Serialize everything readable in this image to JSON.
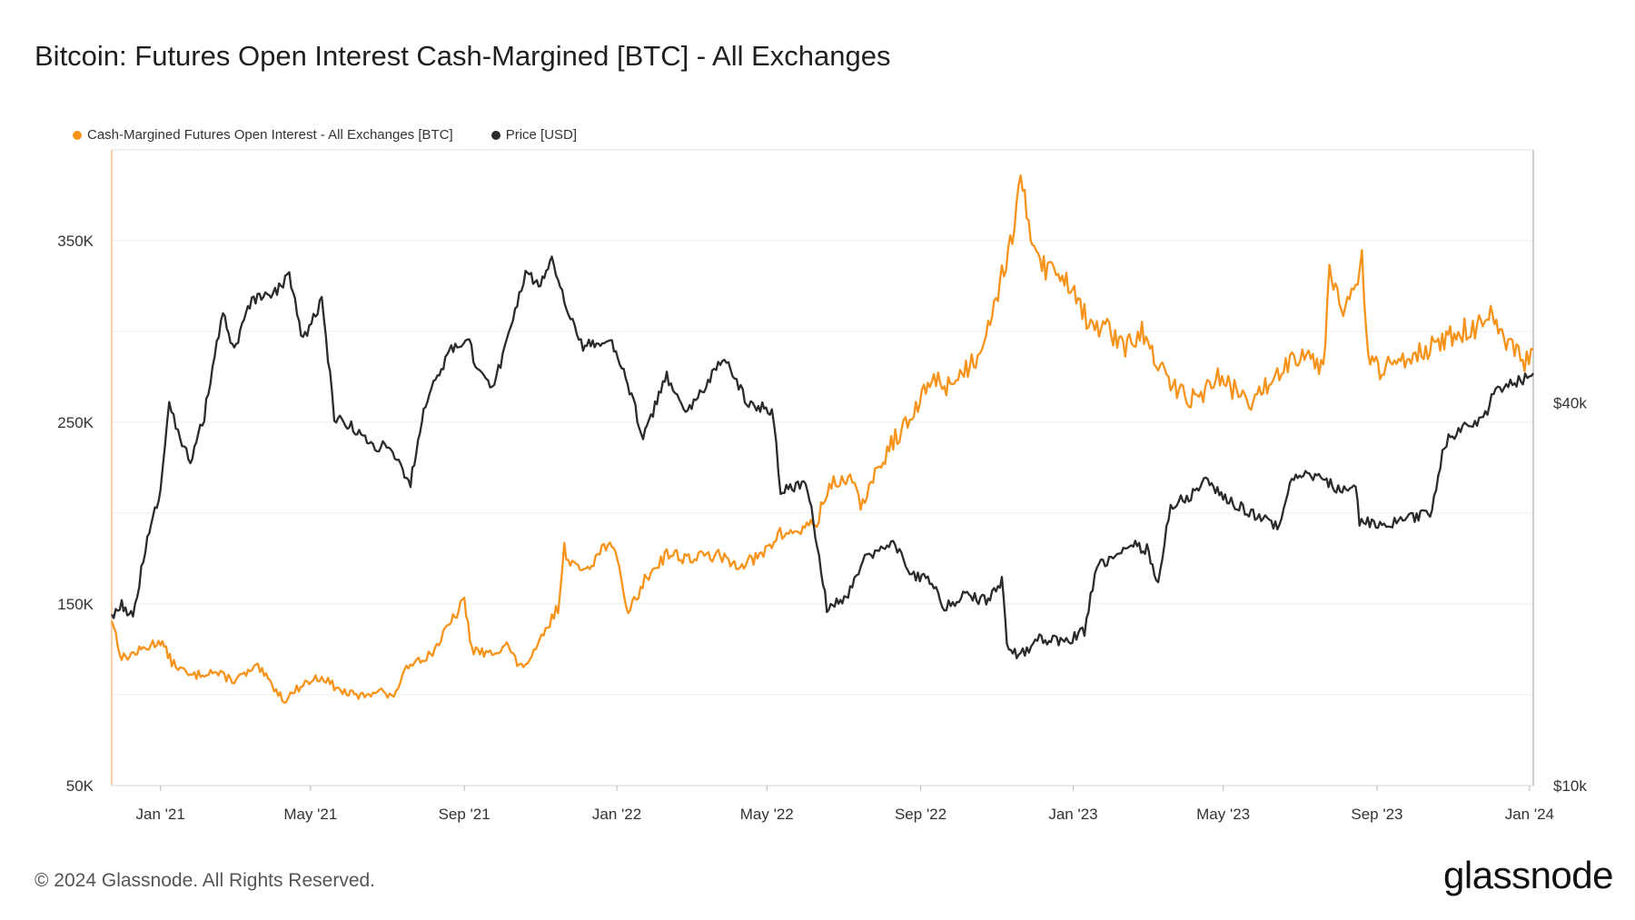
{
  "title": "Bitcoin: Futures Open Interest Cash-Margined [BTC] - All Exchanges",
  "legend": {
    "items": [
      {
        "label": "Cash-Margined Futures Open Interest - All Exchanges [BTC]",
        "color": "#F7931A"
      },
      {
        "label": "Price [USD]",
        "color": "#2b2b2b"
      }
    ]
  },
  "footer": {
    "copyright": "© 2024 Glassnode. All Rights Reserved.",
    "brand": "glassnode"
  },
  "chart_data": {
    "type": "line",
    "title": "Bitcoin: Futures Open Interest Cash-Margined [BTC] - All Exchanges",
    "x_ticks": [
      "Jan '21",
      "May '21",
      "Sep '21",
      "Jan '22",
      "May '22",
      "Sep '22",
      "Jan '23",
      "May '23",
      "Sep '23",
      "Jan '24"
    ],
    "x_tick_dates": [
      "2021-01-01",
      "2021-05-01",
      "2021-09-01",
      "2022-01-01",
      "2022-05-01",
      "2022-09-01",
      "2023-01-01",
      "2023-05-01",
      "2023-09-01",
      "2024-01-01"
    ],
    "x_range": [
      "2020-11-23",
      "2024-01-04"
    ],
    "y_left": {
      "ticks": [
        "350K",
        "250K",
        "150K",
        "50K"
      ],
      "tick_values": [
        350000,
        250000,
        150000,
        50000
      ],
      "range": [
        50000,
        400000
      ]
    },
    "y_right": {
      "ticks": [
        "$40k",
        "$10k"
      ],
      "tick_values": [
        40000,
        10000
      ],
      "scale": "log",
      "range": [
        10000,
        100000
      ]
    },
    "grid": true,
    "legend_position": "top-left",
    "series": [
      {
        "name": "Cash-Margined Futures Open Interest - All Exchanges [BTC]",
        "axis": "left",
        "color": "#F7931A",
        "points": [
          [
            "2020-11-23",
            142000
          ],
          [
            "2020-12-01",
            120000
          ],
          [
            "2020-12-15",
            124000
          ],
          [
            "2021-01-01",
            130000
          ],
          [
            "2021-01-10",
            118000
          ],
          [
            "2021-01-25",
            110000
          ],
          [
            "2021-02-10",
            113000
          ],
          [
            "2021-03-01",
            108000
          ],
          [
            "2021-03-20",
            115000
          ],
          [
            "2021-04-10",
            97000
          ],
          [
            "2021-04-25",
            106000
          ],
          [
            "2021-05-10",
            110000
          ],
          [
            "2021-05-25",
            102000
          ],
          [
            "2021-06-10",
            99000
          ],
          [
            "2021-06-25",
            103000
          ],
          [
            "2021-07-05",
            98000
          ],
          [
            "2021-07-20",
            118000
          ],
          [
            "2021-08-05",
            122000
          ],
          [
            "2021-08-20",
            138000
          ],
          [
            "2021-09-01",
            152000
          ],
          [
            "2021-09-07",
            125000
          ],
          [
            "2021-09-20",
            122000
          ],
          [
            "2021-10-05",
            128000
          ],
          [
            "2021-10-15",
            115000
          ],
          [
            "2021-10-25",
            120000
          ],
          [
            "2021-11-05",
            135000
          ],
          [
            "2021-11-15",
            148000
          ],
          [
            "2021-11-20",
            180000
          ],
          [
            "2021-12-01",
            168000
          ],
          [
            "2021-12-15",
            175000
          ],
          [
            "2021-12-25",
            185000
          ],
          [
            "2022-01-03",
            170000
          ],
          [
            "2022-01-10",
            145000
          ],
          [
            "2022-01-25",
            165000
          ],
          [
            "2022-02-10",
            178000
          ],
          [
            "2022-03-01",
            175000
          ],
          [
            "2022-03-20",
            177000
          ],
          [
            "2022-04-05",
            172000
          ],
          [
            "2022-04-25",
            175000
          ],
          [
            "2022-05-10",
            188000
          ],
          [
            "2022-05-25",
            190000
          ],
          [
            "2022-06-10",
            195000
          ],
          [
            "2022-06-20",
            215000
          ],
          [
            "2022-07-05",
            220000
          ],
          [
            "2022-07-15",
            205000
          ],
          [
            "2022-07-25",
            218000
          ],
          [
            "2022-08-10",
            240000
          ],
          [
            "2022-08-25",
            252000
          ],
          [
            "2022-09-10",
            275000
          ],
          [
            "2022-09-20",
            270000
          ],
          [
            "2022-10-01",
            275000
          ],
          [
            "2022-10-15",
            285000
          ],
          [
            "2022-10-25",
            305000
          ],
          [
            "2022-11-05",
            330000
          ],
          [
            "2022-11-15",
            360000
          ],
          [
            "2022-11-20",
            380000
          ],
          [
            "2022-11-28",
            355000
          ],
          [
            "2022-12-10",
            335000
          ],
          [
            "2022-12-25",
            330000
          ],
          [
            "2023-01-05",
            320000
          ],
          [
            "2023-01-15",
            300000
          ],
          [
            "2023-01-25",
            305000
          ],
          [
            "2023-02-10",
            290000
          ],
          [
            "2023-02-25",
            300000
          ],
          [
            "2023-03-10",
            280000
          ],
          [
            "2023-03-25",
            268000
          ],
          [
            "2023-04-10",
            262000
          ],
          [
            "2023-04-25",
            275000
          ],
          [
            "2023-05-10",
            268000
          ],
          [
            "2023-05-25",
            260000
          ],
          [
            "2023-06-10",
            275000
          ],
          [
            "2023-06-25",
            285000
          ],
          [
            "2023-07-05",
            290000
          ],
          [
            "2023-07-20",
            280000
          ],
          [
            "2023-07-25",
            335000
          ],
          [
            "2023-08-05",
            315000
          ],
          [
            "2023-08-15",
            320000
          ],
          [
            "2023-08-20",
            340000
          ],
          [
            "2023-08-25",
            285000
          ],
          [
            "2023-09-05",
            278000
          ],
          [
            "2023-09-20",
            285000
          ],
          [
            "2023-10-05",
            290000
          ],
          [
            "2023-10-20",
            292000
          ],
          [
            "2023-11-05",
            300000
          ],
          [
            "2023-11-20",
            302000
          ],
          [
            "2023-12-01",
            308000
          ],
          [
            "2023-12-10",
            295000
          ],
          [
            "2023-12-20",
            290000
          ],
          [
            "2023-12-28",
            282000
          ],
          [
            "2024-01-04",
            290000
          ]
        ]
      },
      {
        "name": "Price [USD]",
        "axis": "right",
        "color": "#2b2b2b",
        "points": [
          [
            "2020-11-23",
            18500
          ],
          [
            "2020-12-01",
            19300
          ],
          [
            "2020-12-10",
            18300
          ],
          [
            "2020-12-20",
            23500
          ],
          [
            "2021-01-01",
            29000
          ],
          [
            "2021-01-08",
            40500
          ],
          [
            "2021-01-15",
            36000
          ],
          [
            "2021-01-25",
            32000
          ],
          [
            "2021-02-05",
            38000
          ],
          [
            "2021-02-20",
            55000
          ],
          [
            "2021-03-01",
            48000
          ],
          [
            "2021-03-15",
            58000
          ],
          [
            "2021-04-01",
            59000
          ],
          [
            "2021-04-14",
            63500
          ],
          [
            "2021-04-25",
            50000
          ],
          [
            "2021-05-10",
            58000
          ],
          [
            "2021-05-15",
            47000
          ],
          [
            "2021-05-20",
            38000
          ],
          [
            "2021-06-01",
            37000
          ],
          [
            "2021-06-20",
            34000
          ],
          [
            "2021-07-01",
            34500
          ],
          [
            "2021-07-20",
            29800
          ],
          [
            "2021-08-01",
            40000
          ],
          [
            "2021-08-20",
            48000
          ],
          [
            "2021-09-05",
            51000
          ],
          [
            "2021-09-10",
            45000
          ],
          [
            "2021-09-25",
            42500
          ],
          [
            "2021-10-05",
            50000
          ],
          [
            "2021-10-20",
            64000
          ],
          [
            "2021-11-01",
            61000
          ],
          [
            "2021-11-10",
            68000
          ],
          [
            "2021-11-20",
            58000
          ],
          [
            "2021-12-05",
            49000
          ],
          [
            "2021-12-25",
            50500
          ],
          [
            "2022-01-05",
            46000
          ],
          [
            "2022-01-22",
            35000
          ],
          [
            "2022-02-10",
            44000
          ],
          [
            "2022-02-25",
            38000
          ],
          [
            "2022-03-28",
            47000
          ],
          [
            "2022-04-15",
            40000
          ],
          [
            "2022-05-05",
            39000
          ],
          [
            "2022-05-12",
            29000
          ],
          [
            "2022-06-01",
            30000
          ],
          [
            "2022-06-18",
            19000
          ],
          [
            "2022-07-05",
            20000
          ],
          [
            "2022-07-20",
            23000
          ],
          [
            "2022-08-10",
            24000
          ],
          [
            "2022-08-25",
            21500
          ],
          [
            "2022-09-10",
            21000
          ],
          [
            "2022-09-20",
            19000
          ],
          [
            "2022-10-05",
            20000
          ],
          [
            "2022-10-25",
            19500
          ],
          [
            "2022-11-05",
            21000
          ],
          [
            "2022-11-09",
            16500
          ],
          [
            "2022-11-20",
            16000
          ],
          [
            "2022-12-05",
            17000
          ],
          [
            "2022-12-25",
            16800
          ],
          [
            "2023-01-10",
            17500
          ],
          [
            "2023-01-20",
            22000
          ],
          [
            "2023-02-15",
            24000
          ],
          [
            "2023-03-01",
            23500
          ],
          [
            "2023-03-10",
            20500
          ],
          [
            "2023-03-20",
            27500
          ],
          [
            "2023-04-10",
            29000
          ],
          [
            "2023-04-14",
            30500
          ],
          [
            "2023-05-01",
            28500
          ],
          [
            "2023-05-20",
            27000
          ],
          [
            "2023-06-15",
            25500
          ],
          [
            "2023-06-25",
            30500
          ],
          [
            "2023-07-15",
            30800
          ],
          [
            "2023-08-01",
            29200
          ],
          [
            "2023-08-15",
            29300
          ],
          [
            "2023-08-18",
            26000
          ],
          [
            "2023-09-10",
            25800
          ],
          [
            "2023-09-25",
            26300
          ],
          [
            "2023-10-15",
            27000
          ],
          [
            "2023-10-25",
            34500
          ],
          [
            "2023-11-10",
            37000
          ],
          [
            "2023-11-25",
            37500
          ],
          [
            "2023-12-05",
            42000
          ],
          [
            "2023-12-15",
            42500
          ],
          [
            "2023-12-25",
            43500
          ],
          [
            "2024-01-01",
            44000
          ],
          [
            "2024-01-04",
            44500
          ]
        ]
      }
    ]
  }
}
